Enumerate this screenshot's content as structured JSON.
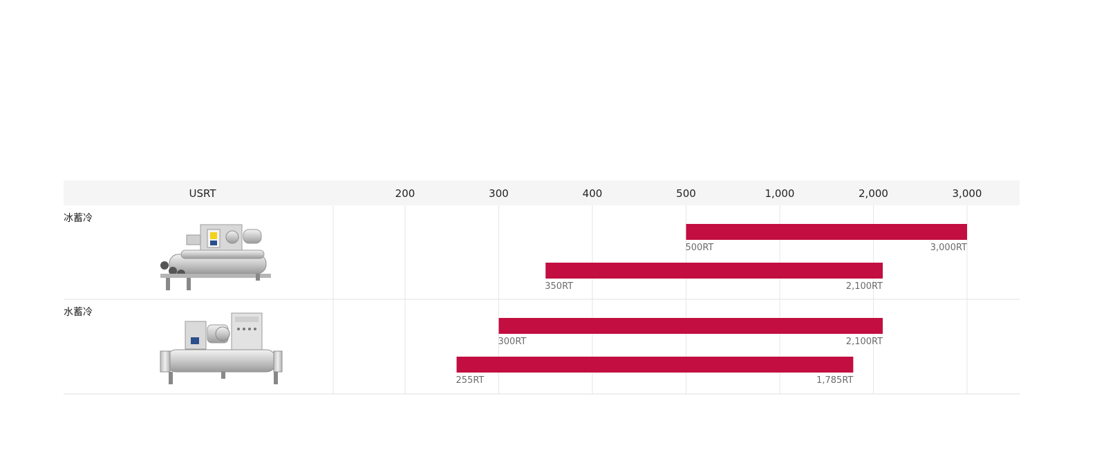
{
  "chart_data": {
    "type": "bar",
    "header": "USRT",
    "ticks": [
      "200",
      "300",
      "400",
      "500",
      "1,000",
      "2,000",
      "3,000"
    ],
    "groups": [
      {
        "label": "冰蓄冷",
        "bars": [
          {
            "start": "500",
            "end": "3,000",
            "start_label": "500RT",
            "end_label": "3,000RT"
          },
          {
            "start": 350,
            "end": 2100,
            "start_label": "350RT",
            "end_label": "2,100RT"
          }
        ]
      },
      {
        "label": "水蓄冷",
        "bars": [
          {
            "start": 300,
            "end": 2100,
            "start_label": "300RT",
            "end_label": "2,100RT"
          },
          {
            "start": 255,
            "end": 1785,
            "start_label": "255RT",
            "end_label": "1,785RT"
          }
        ]
      }
    ],
    "bar_color": "#c20e40",
    "header_bg": "#f5f5f5",
    "grid": true
  }
}
